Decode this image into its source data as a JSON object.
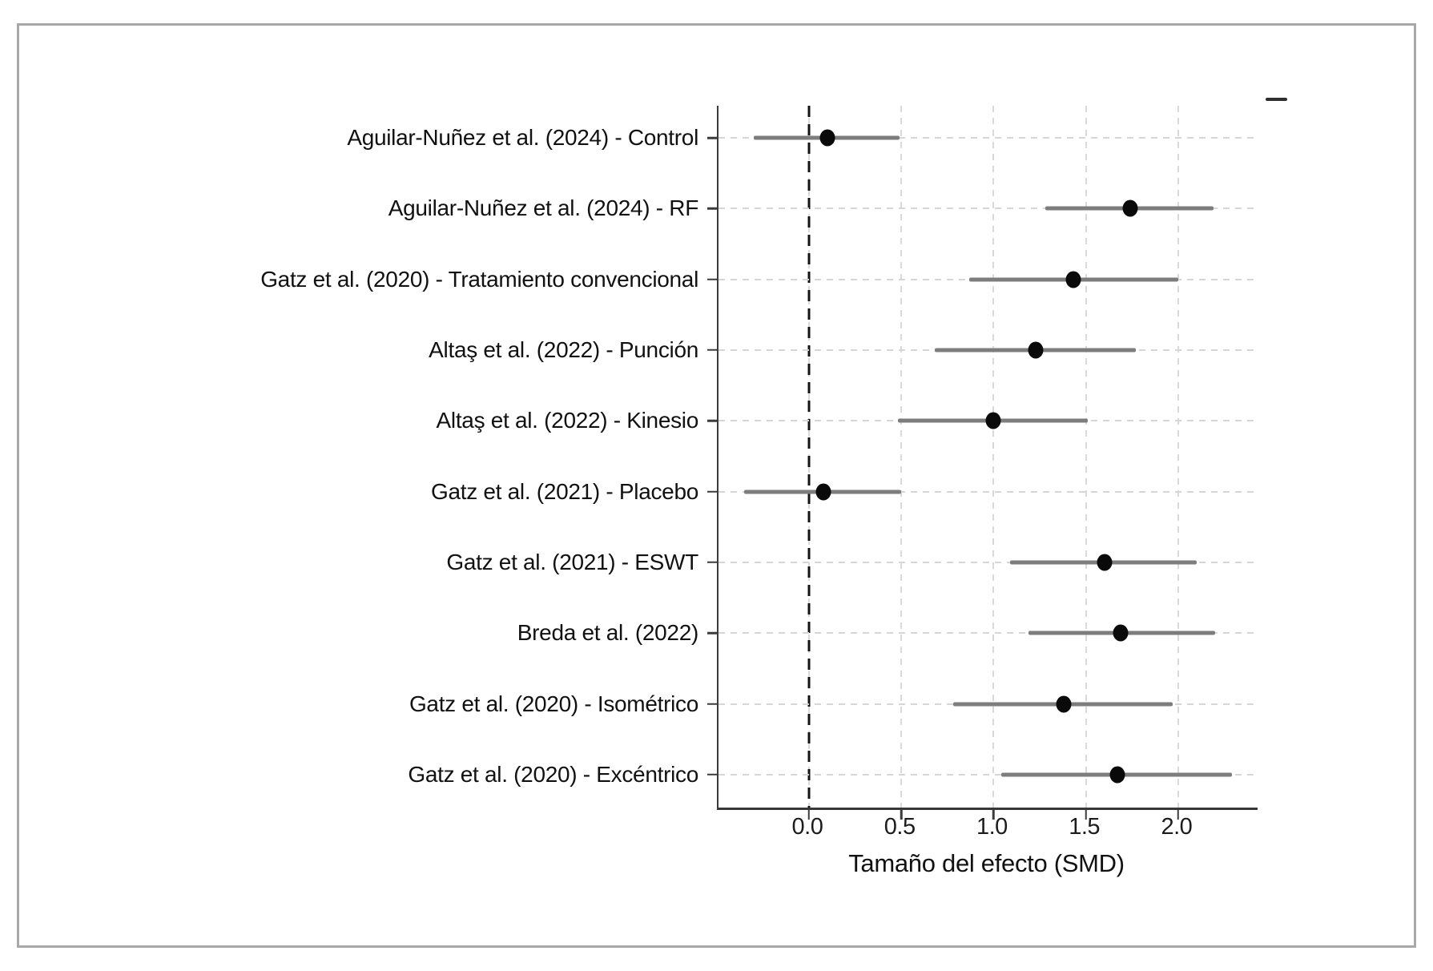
{
  "xaxis_title": "Tamaño del efecto (SMD)",
  "chart_data": {
    "type": "scatter",
    "subtype": "forest-plot",
    "title": "",
    "xlabel": "Tamaño del efecto (SMD)",
    "ylabel": "",
    "xlim": [
      -0.49,
      2.43
    ],
    "x_ticks": [
      0.0,
      0.5,
      1.0,
      1.5,
      2.0
    ],
    "x_tick_labels": [
      "0.0",
      "0.5",
      "1.0",
      "1.5",
      "2.0"
    ],
    "zero_reference_line": 0.0,
    "grid": true,
    "legend": "none",
    "studies": [
      {
        "label": "Aguilar-Nuñez et al. (2024) - Control",
        "smd": 0.1,
        "ci_low": -0.3,
        "ci_high": 0.49
      },
      {
        "label": "Aguilar-Nuñez et al. (2024) - RF",
        "smd": 1.74,
        "ci_low": 1.28,
        "ci_high": 2.19
      },
      {
        "label": "Gatz et al. (2020) - Tratamiento convencional",
        "smd": 1.43,
        "ci_low": 0.87,
        "ci_high": 2.0
      },
      {
        "label": "Altaş et al. (2022) - Punción",
        "smd": 1.23,
        "ci_low": 0.68,
        "ci_high": 1.77
      },
      {
        "label": "Altaş et al. (2022) - Kinesio",
        "smd": 1.0,
        "ci_low": 0.48,
        "ci_high": 1.51
      },
      {
        "label": "Gatz et al. (2021) - Placebo",
        "smd": 0.08,
        "ci_low": -0.35,
        "ci_high": 0.5
      },
      {
        "label": "Gatz et al. (2021) - ESWT",
        "smd": 1.6,
        "ci_low": 1.09,
        "ci_high": 2.1
      },
      {
        "label": "Breda et al. (2022)",
        "smd": 1.69,
        "ci_low": 1.19,
        "ci_high": 2.2
      },
      {
        "label": "Gatz et al. (2020) - Isométrico",
        "smd": 1.38,
        "ci_low": 0.78,
        "ci_high": 1.97
      },
      {
        "label": "Gatz et al. (2020) - Excéntrico",
        "smd": 1.67,
        "ci_low": 1.04,
        "ci_high": 2.29
      }
    ],
    "style": {
      "marker_color": "#0a0a0a",
      "ci_color": "#7d7d7d",
      "zero_line_color": "#141414",
      "grid_color": "#d6d6d6",
      "frame_border_color": "#a8a8a8"
    }
  }
}
